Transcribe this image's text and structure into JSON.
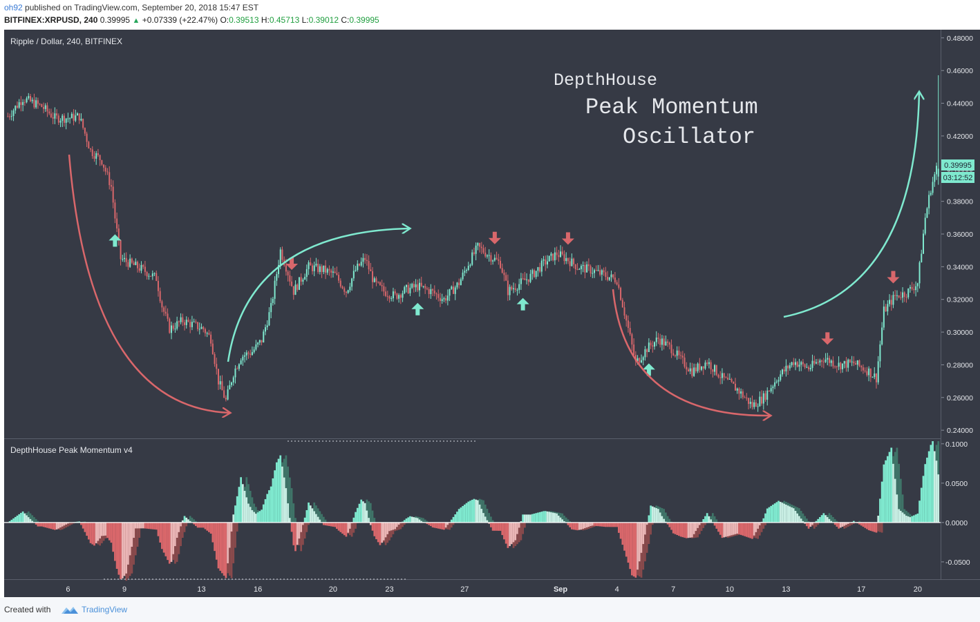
{
  "header": {
    "user": "oh92",
    "published_text": "published on TradingView.com, September 20, 2018 15:47 EST",
    "symbol": "BITFINEX:XRPUSD, 240",
    "last": "0.39995",
    "change": "+0.07339 (+22.47%)",
    "o_label": "O:",
    "o": "0.39513",
    "h_label": "H:",
    "h": "0.45713",
    "l_label": "L:",
    "l": "0.39012",
    "c_label": "C:",
    "c": "0.39995"
  },
  "price_pane": {
    "label": "Ripple / Dollar, 240, BITFINEX",
    "title_lines": [
      "DepthHouse",
      "Peak Momentum",
      "Oscillator"
    ],
    "last_price_tag": "0.39995",
    "countdown_tag": "03:12:52"
  },
  "osc_pane": {
    "label": "DepthHouse Peak Momentum v4"
  },
  "footer": {
    "created_with": "Created with",
    "brand": "TradingView"
  },
  "colors": {
    "background": "#363a45",
    "bull": "#7fe9cf",
    "bear": "#d9676b",
    "bull_light": "#c9eee4",
    "bear_light": "#eab6b6",
    "bull_dark": "#3f7468",
    "bear_dark": "#8a4a4c",
    "text": "#e6e8ec"
  },
  "chart_data": [
    {
      "type": "candlestick",
      "title": "Ripple / Dollar, 240, BITFINEX",
      "ylim": [
        0.235,
        0.485
      ],
      "y_ticks": [
        "0.48000",
        "0.46000",
        "0.44000",
        "0.42000",
        "0.40000",
        "0.38000",
        "0.36000",
        "0.34000",
        "0.32000",
        "0.30000",
        "0.28000",
        "0.26000",
        "0.24000"
      ],
      "x_ticks": [
        "6",
        "9",
        "13",
        "16",
        "20",
        "23",
        "27",
        "Sep",
        "4",
        "7",
        "10",
        "13",
        "17",
        "20"
      ],
      "close_path_anchors": [
        [
          0,
          0.432
        ],
        [
          8,
          0.443
        ],
        [
          18,
          0.438
        ],
        [
          25,
          0.431
        ],
        [
          33,
          0.431
        ],
        [
          38,
          0.432
        ],
        [
          44,
          0.411
        ],
        [
          50,
          0.405
        ],
        [
          55,
          0.389
        ],
        [
          57,
          0.37
        ],
        [
          60,
          0.345
        ],
        [
          65,
          0.342
        ],
        [
          72,
          0.338
        ],
        [
          79,
          0.333
        ],
        [
          82,
          0.316
        ],
        [
          86,
          0.302
        ],
        [
          93,
          0.307
        ],
        [
          104,
          0.302
        ],
        [
          108,
          0.296
        ],
        [
          112,
          0.27
        ],
        [
          116,
          0.258
        ],
        [
          120,
          0.275
        ],
        [
          124,
          0.285
        ],
        [
          130,
          0.288
        ],
        [
          135,
          0.295
        ],
        [
          140,
          0.315
        ],
        [
          145,
          0.35
        ],
        [
          148,
          0.34
        ],
        [
          152,
          0.325
        ],
        [
          160,
          0.34
        ],
        [
          168,
          0.338
        ],
        [
          174,
          0.335
        ],
        [
          180,
          0.325
        ],
        [
          185,
          0.338
        ],
        [
          190,
          0.345
        ],
        [
          195,
          0.33
        ],
        [
          200,
          0.325
        ],
        [
          206,
          0.322
        ],
        [
          212,
          0.326
        ],
        [
          218,
          0.328
        ],
        [
          225,
          0.325
        ],
        [
          232,
          0.32
        ],
        [
          240,
          0.33
        ],
        [
          245,
          0.342
        ],
        [
          250,
          0.352
        ],
        [
          256,
          0.347
        ],
        [
          262,
          0.342
        ],
        [
          266,
          0.325
        ],
        [
          270,
          0.328
        ],
        [
          278,
          0.334
        ],
        [
          285,
          0.342
        ],
        [
          292,
          0.348
        ],
        [
          297,
          0.345
        ],
        [
          303,
          0.34
        ],
        [
          310,
          0.338
        ],
        [
          317,
          0.335
        ],
        [
          324,
          0.332
        ],
        [
          330,
          0.302
        ],
        [
          334,
          0.281
        ],
        [
          340,
          0.29
        ],
        [
          346,
          0.296
        ],
        [
          353,
          0.29
        ],
        [
          358,
          0.283
        ],
        [
          364,
          0.276
        ],
        [
          372,
          0.282
        ],
        [
          380,
          0.272
        ],
        [
          388,
          0.265
        ],
        [
          396,
          0.255
        ],
        [
          402,
          0.26
        ],
        [
          410,
          0.273
        ],
        [
          418,
          0.282
        ],
        [
          426,
          0.278
        ],
        [
          434,
          0.284
        ],
        [
          442,
          0.28
        ],
        [
          450,
          0.281
        ],
        [
          458,
          0.276
        ],
        [
          462,
          0.272
        ],
        [
          466,
          0.313
        ],
        [
          472,
          0.322
        ],
        [
          478,
          0.324
        ],
        [
          484,
          0.33
        ],
        [
          488,
          0.37
        ],
        [
          491,
          0.388
        ],
        [
          494,
          0.4
        ]
      ],
      "signals": [
        {
          "index": 57,
          "direction": "up"
        },
        {
          "index": 151,
          "direction": "down"
        },
        {
          "index": 218,
          "direction": "up"
        },
        {
          "index": 259,
          "direction": "down"
        },
        {
          "index": 274,
          "direction": "up"
        },
        {
          "index": 298,
          "direction": "down"
        },
        {
          "index": 341,
          "direction": "up"
        },
        {
          "index": 436,
          "direction": "down"
        },
        {
          "index": 471,
          "direction": "down"
        }
      ],
      "ohlc_last": {
        "o": 0.39513,
        "h": 0.45713,
        "l": 0.39012,
        "c": 0.39995
      }
    },
    {
      "type": "bar",
      "title": "DepthHouse Peak Momentum v4",
      "ylim": [
        -0.072,
        0.106
      ],
      "y_ticks": [
        "0.1000",
        "0.0500",
        "0.0000",
        "-0.0500"
      ],
      "series_rule": "bull/bear colored histogram of momentum with lighter shade while fading and darker trail behind"
    }
  ]
}
